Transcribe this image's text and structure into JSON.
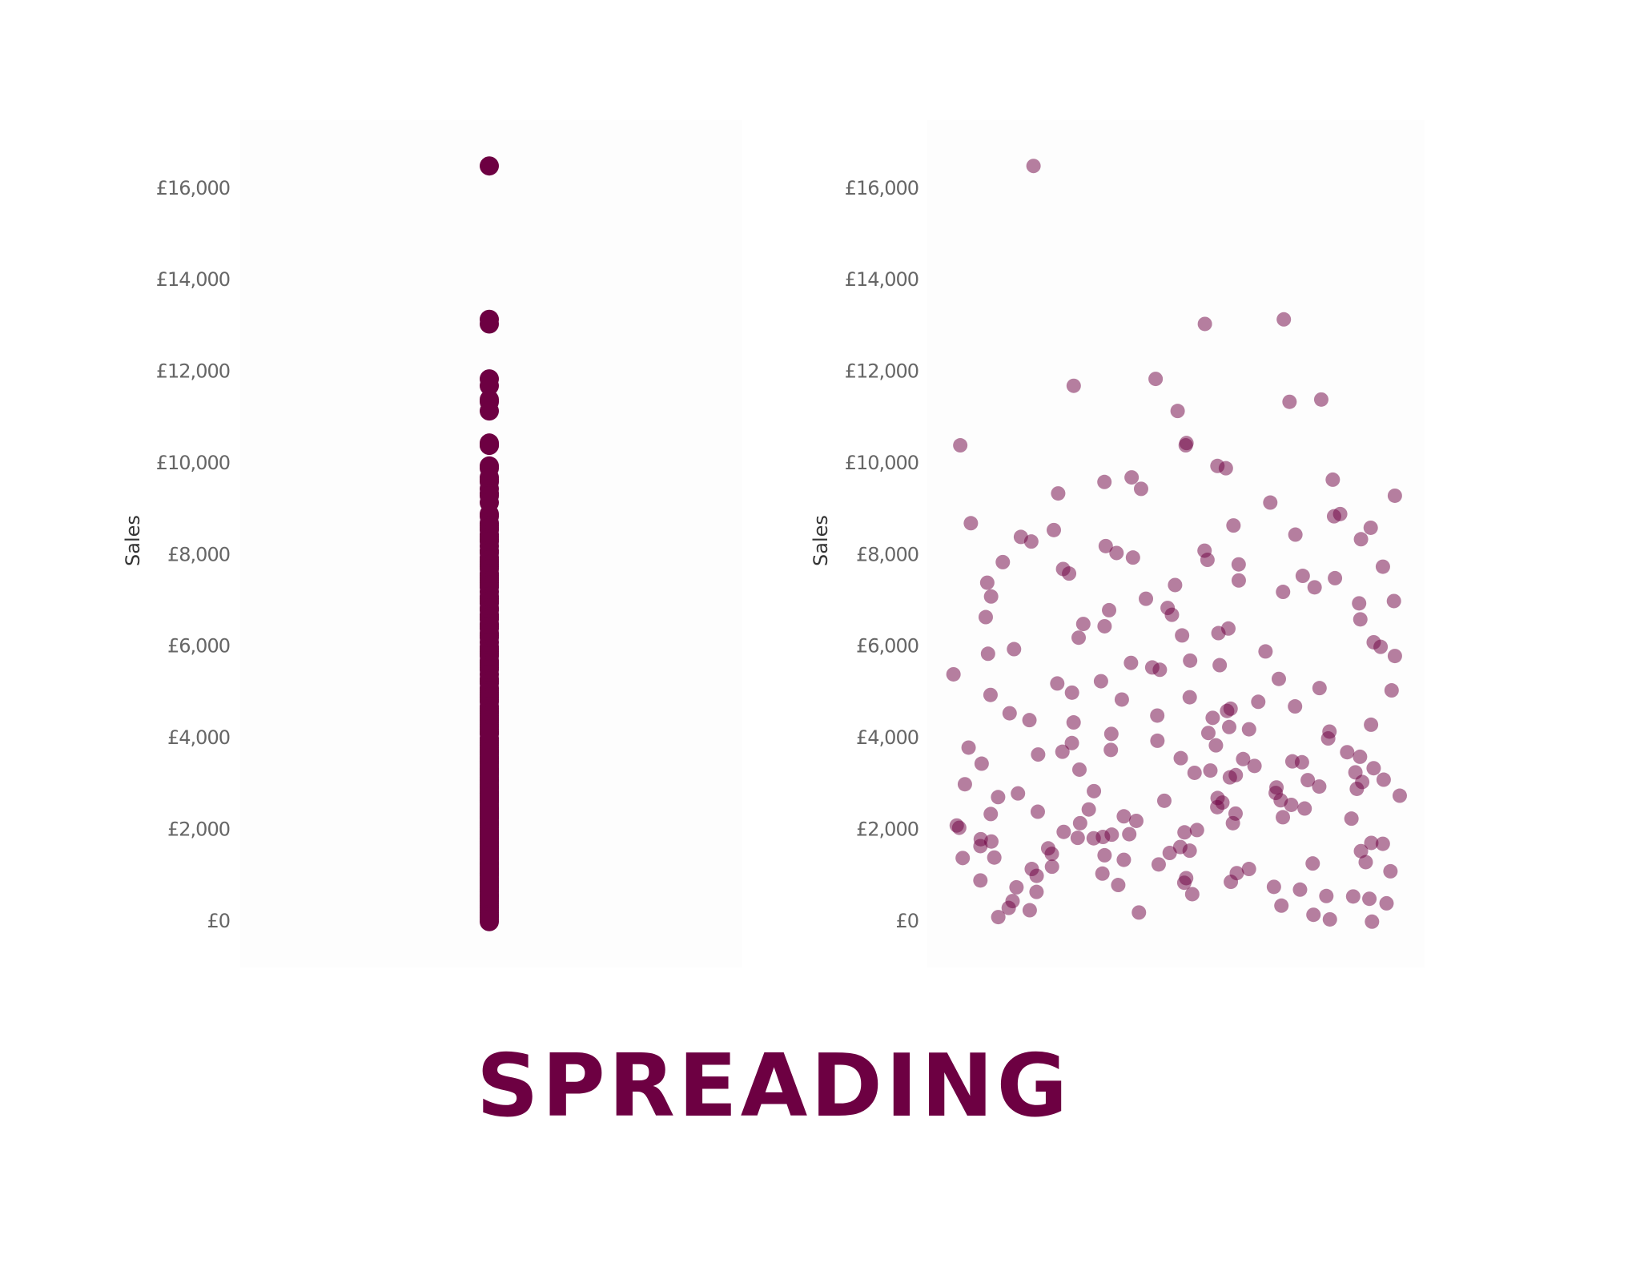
{
  "heading": "SPREADING",
  "chart_data": [
    {
      "type": "strip",
      "jitter": false,
      "y_label": "Sales",
      "color": "#6d0042",
      "opacity": 1,
      "ylim": [
        -1000,
        17500
      ],
      "yticks": [
        {
          "value": 0,
          "label": "£0"
        },
        {
          "value": 2000,
          "label": "£2,000"
        },
        {
          "value": 4000,
          "label": "£4,000"
        },
        {
          "value": 6000,
          "label": "£6,000"
        },
        {
          "value": 8000,
          "label": "£8,000"
        },
        {
          "value": 10000,
          "label": "£10,000"
        },
        {
          "value": 12000,
          "label": "£12,000"
        },
        {
          "value": 14000,
          "label": "£14,000"
        },
        {
          "value": 16000,
          "label": "£16,000"
        }
      ],
      "values": [
        16500,
        13150,
        13050,
        11850,
        11700,
        11400,
        11350,
        11150,
        10450,
        10400,
        10400,
        9950,
        9900,
        9700,
        9650,
        9600,
        9450,
        9350,
        9300,
        9150,
        8900,
        8850,
        8700,
        8650,
        8600,
        8550,
        8450,
        8400,
        8350,
        8300,
        8200,
        8100,
        8050,
        7950,
        7900,
        7850,
        7800,
        7750,
        7700,
        7600,
        7550,
        7500,
        7450,
        7400,
        7350,
        7300,
        7200,
        7100,
        7050,
        7000,
        6950,
        6850,
        6800,
        6700,
        6650,
        6600,
        6500,
        6450,
        6400,
        6300,
        6250,
        6200,
        6100,
        6000,
        5950,
        5900,
        5850,
        5800,
        5700,
        5650,
        5600,
        5550,
        5500,
        5400,
        5300,
        5250,
        5200,
        5100,
        5050,
        5000,
        4950,
        4900,
        4850,
        4800,
        4700,
        4650,
        4600,
        4550,
        4500,
        4450,
        4400,
        4350,
        4300,
        4250,
        4200,
        4150,
        4100,
        4000,
        3950,
        3900,
        3850,
        3800,
        3750,
        3700,
        3650,
        3600,
        3550,
        3500,
        3450,
        3400,
        3350,
        3300,
        3250,
        3200,
        3150,
        3100,
        3050,
        3000,
        2950,
        2900,
        2850,
        2800,
        2750,
        2700,
        2650,
        2600,
        2550,
        2500,
        2450,
        2400,
        2350,
        2300,
        2250,
        2200,
        2150,
        2100,
        2050,
        2000,
        1950,
        1900,
        1850,
        1800,
        1750,
        1700,
        1650,
        1600,
        1550,
        1500,
        1450,
        1400,
        1350,
        1300,
        1250,
        1200,
        1150,
        1100,
        1050,
        1000,
        950,
        900,
        850,
        800,
        750,
        700,
        650,
        600,
        550,
        500,
        450,
        400,
        350,
        300,
        250,
        200,
        150,
        100,
        50,
        0,
        1820,
        2640,
        1480,
        3320,
        1960,
        2280,
        1150,
        3710,
        2470,
        1630,
        870,
        2930,
        1390,
        3480,
        2150,
        1720,
        560,
        3090,
        2810,
        1270,
        4120,
        1910,
        2360,
        3570,
        1540,
        760,
        2720,
        1830,
        3260,
        1060
      ]
    },
    {
      "type": "strip",
      "jitter": true,
      "y_label": "Sales",
      "color": "#6d0042",
      "opacity": 0.5,
      "ylim": [
        -1000,
        17500
      ],
      "yticks": [
        {
          "value": 0,
          "label": "£0"
        },
        {
          "value": 2000,
          "label": "£2,000"
        },
        {
          "value": 4000,
          "label": "£4,000"
        },
        {
          "value": 6000,
          "label": "£6,000"
        },
        {
          "value": 8000,
          "label": "£8,000"
        },
        {
          "value": 10000,
          "label": "£10,000"
        },
        {
          "value": 12000,
          "label": "£12,000"
        },
        {
          "value": 14000,
          "label": "£14,000"
        },
        {
          "value": 16000,
          "label": "£16,000"
        }
      ],
      "values": [
        16500,
        13150,
        13050,
        11850,
        11700,
        11400,
        11350,
        11150,
        10450,
        10400,
        10400,
        9950,
        9900,
        9700,
        9650,
        9600,
        9450,
        9350,
        9300,
        9150,
        8900,
        8850,
        8700,
        8650,
        8600,
        8550,
        8450,
        8400,
        8350,
        8300,
        8200,
        8100,
        8050,
        7950,
        7900,
        7850,
        7800,
        7750,
        7700,
        7600,
        7550,
        7500,
        7450,
        7400,
        7350,
        7300,
        7200,
        7100,
        7050,
        7000,
        6950,
        6850,
        6800,
        6700,
        6650,
        6600,
        6500,
        6450,
        6400,
        6300,
        6250,
        6200,
        6100,
        6000,
        5950,
        5900,
        5850,
        5800,
        5700,
        5650,
        5600,
        5550,
        5500,
        5400,
        5300,
        5250,
        5200,
        5100,
        5050,
        5000,
        4950,
        4900,
        4850,
        4800,
        4700,
        4650,
        4600,
        4550,
        4500,
        4450,
        4400,
        4350,
        4300,
        4250,
        4200,
        4150,
        4100,
        4000,
        3950,
        3900,
        3850,
        3800,
        3750,
        3700,
        3650,
        3600,
        3550,
        3500,
        3450,
        3400,
        3350,
        3300,
        3250,
        3200,
        3150,
        3100,
        3050,
        3000,
        2950,
        2900,
        2850,
        2800,
        2750,
        2700,
        2650,
        2600,
        2550,
        2500,
        2450,
        2400,
        2350,
        2300,
        2250,
        2200,
        2150,
        2100,
        2050,
        2000,
        1950,
        1900,
        1850,
        1800,
        1750,
        1700,
        1650,
        1600,
        1550,
        1500,
        1450,
        1400,
        1350,
        1300,
        1250,
        1200,
        1150,
        1100,
        1050,
        1000,
        950,
        900,
        850,
        800,
        750,
        700,
        650,
        600,
        550,
        500,
        450,
        400,
        350,
        300,
        250,
        200,
        150,
        100,
        50,
        0,
        1820,
        2640,
        1480,
        3320,
        1960,
        2280,
        1150,
        3710,
        2470,
        1630,
        870,
        2930,
        1390,
        3480,
        2150,
        1720,
        560,
        3090,
        2810,
        1270,
        4120,
        1910,
        2360,
        3570,
        1540,
        760,
        2720,
        1830,
        3260,
        1060
      ]
    }
  ]
}
